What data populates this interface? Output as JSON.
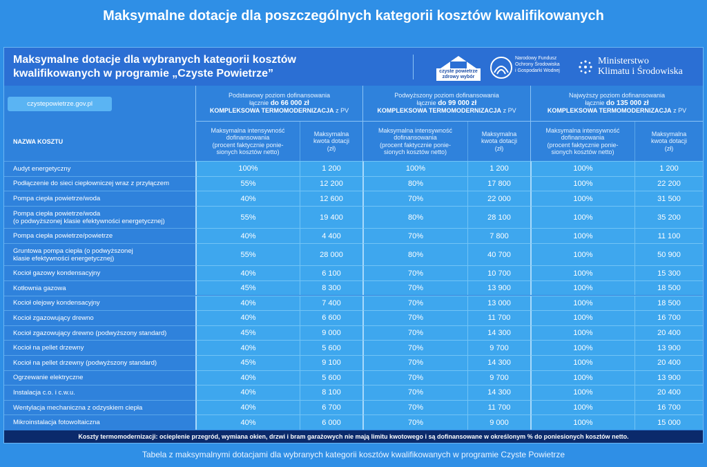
{
  "title": "Maksymalne dotacje dla poszczególnych kategorii kosztów kwalifikowanych",
  "card": {
    "title_lines": [
      "Maksymalne dotacje dla wybranych kategorii kosztów",
      "kwalifikowanych w programie „Czyste Powietrze”"
    ],
    "website": "czystepowietrze.gov.pl",
    "logos": {
      "program": [
        "czyste powietrze",
        "zdrowy wybór"
      ],
      "fund": [
        "Narodowy Fundusz",
        "Ochrony Środowiska",
        "i Gospodarki Wodnej"
      ],
      "ministry": [
        "Ministerstwo",
        "Klimatu i Środowiska"
      ]
    }
  },
  "table": {
    "name_header": "NAZWA KOSZTU",
    "levels": [
      {
        "name": "Podstawowy poziom dofinansowania",
        "total_prefix": "łącznie",
        "total_amount": "do  66 000 zł",
        "scope": "KOMPLEKSOWA TERMOMODERNIZACJA",
        "scope_suffix": "z PV",
        "intensity_header": [
          "Maksymalna intensywność",
          "dofinansowania",
          "(procent faktycznie ponie-",
          "sionych kosztów netto)"
        ],
        "amount_header": [
          "Maksymalna",
          "kwota dotacji",
          "(zł)"
        ]
      },
      {
        "name": "Podwyższony poziom dofinansowania",
        "total_prefix": "łącznie",
        "total_amount": "do 99 000 zł",
        "scope": "KOMPLEKSOWA TERMOMODERNIZACJA",
        "scope_suffix": "z PV",
        "intensity_header": [
          "Maksymalna intensywność",
          "dofinansowania",
          "(procent faktycznie ponie-",
          "sionych kosztów netto)"
        ],
        "amount_header": [
          "Maksymalna",
          "kwota dotacji",
          "(zł)"
        ]
      },
      {
        "name": "Najwyższy poziom dofinansowania",
        "total_prefix": "łącznie",
        "total_amount": "do 135 000 zł",
        "scope": "KOMPLEKSOWA TERMOMODERNIZACJA",
        "scope_suffix": "z PV",
        "intensity_header": [
          "Maksymalna intensywność",
          "dofinansowania",
          "(procent faktycznie ponie-",
          "sionych kosztów netto)"
        ],
        "amount_header": [
          "Maksymalna",
          "kwota dotacji",
          "(zł)"
        ]
      }
    ],
    "rows": [
      {
        "name": [
          "Audyt energetyczny"
        ],
        "cells": [
          "100%",
          "1 200",
          "100%",
          "1 200",
          "100%",
          "1 200"
        ]
      },
      {
        "name": [
          "Podłączenie do sieci ciepłowniczej wraz z przyłączem"
        ],
        "cells": [
          "55%",
          "12 200",
          "80%",
          "17 800",
          "100%",
          "22 200"
        ]
      },
      {
        "name": [
          "Pompa ciepła powietrze/woda"
        ],
        "cells": [
          "40%",
          "12 600",
          "70%",
          "22 000",
          "100%",
          "31 500"
        ]
      },
      {
        "name": [
          "Pompa ciepła powietrze/woda",
          "(o podwyższonej klasie efektywności energetycznej)"
        ],
        "cells": [
          "55%",
          "19 400",
          "80%",
          "28 100",
          "100%",
          "35 200"
        ]
      },
      {
        "name": [
          "Pompa ciepła powietrze/powietrze"
        ],
        "cells": [
          "40%",
          "4 400",
          "70%",
          "7 800",
          "100%",
          "11 100"
        ]
      },
      {
        "name": [
          "Gruntowa pompa ciepła (o podwyższonej",
          "klasie efektywności energetycznej)"
        ],
        "cells": [
          "55%",
          "28 000",
          "80%",
          "40 700",
          "100%",
          "50 900"
        ]
      },
      {
        "name": [
          "Kocioł gazowy kondensacyjny"
        ],
        "cells": [
          "40%",
          "6 100",
          "70%",
          "10 700",
          "100%",
          "15 300"
        ]
      },
      {
        "name": [
          "Kotłownia gazowa"
        ],
        "cells": [
          "45%",
          "8 300",
          "70%",
          "13 900",
          "100%",
          "18 500"
        ]
      },
      {
        "name": [
          "Kocioł olejowy kondensacyjny"
        ],
        "cells": [
          "40%",
          "7 400",
          "70%",
          "13 000",
          "100%",
          "18 500"
        ]
      },
      {
        "name": [
          "Kocioł zgazowujący drewno"
        ],
        "cells": [
          "40%",
          "6 600",
          "70%",
          "11 700",
          "100%",
          "16 700"
        ]
      },
      {
        "name": [
          "Kocioł zgazowujący drewno (podwyższony standard)"
        ],
        "cells": [
          "45%",
          "9 000",
          "70%",
          "14 300",
          "100%",
          "20 400"
        ]
      },
      {
        "name": [
          "Kocioł na pellet drzewny"
        ],
        "cells": [
          "40%",
          "5 600",
          "70%",
          "9 700",
          "100%",
          "13 900"
        ]
      },
      {
        "name": [
          "Kocioł na pellet drzewny (podwyższony standard)"
        ],
        "cells": [
          "45%",
          "9 100",
          "70%",
          "14 300",
          "100%",
          "20 400"
        ]
      },
      {
        "name": [
          "Ogrzewanie elektryczne"
        ],
        "cells": [
          "40%",
          "5 600",
          "70%",
          "9 700",
          "100%",
          "13 900"
        ]
      },
      {
        "name": [
          "Instalacja c.o. i c.w.u."
        ],
        "cells": [
          "40%",
          "8 100",
          "70%",
          "14 300",
          "100%",
          "20 400"
        ]
      },
      {
        "name": [
          "Wentylacja mechaniczna z odzyskiem ciepła"
        ],
        "cells": [
          "40%",
          "6 700",
          "70%",
          "11 700",
          "100%",
          "16 700"
        ]
      },
      {
        "name": [
          "Mikroinstalacja fotowoltaiczna"
        ],
        "cells": [
          "40%",
          "6 000",
          "70%",
          "9 000",
          "100%",
          "15 000"
        ]
      }
    ]
  },
  "footnote": "Koszty  termomodernizacji: ocieplenie przegród, wymiana okien, drzwi i bram garażowych nie mają limitu kwotowego i są dofinansowane w określonym % do poniesionych kosztów netto.",
  "caption": "Tabela z maksymalnymi dotacjami dla wybranych kategorii kosztów kwalifikowanych w programie Czyste Powietrze"
}
